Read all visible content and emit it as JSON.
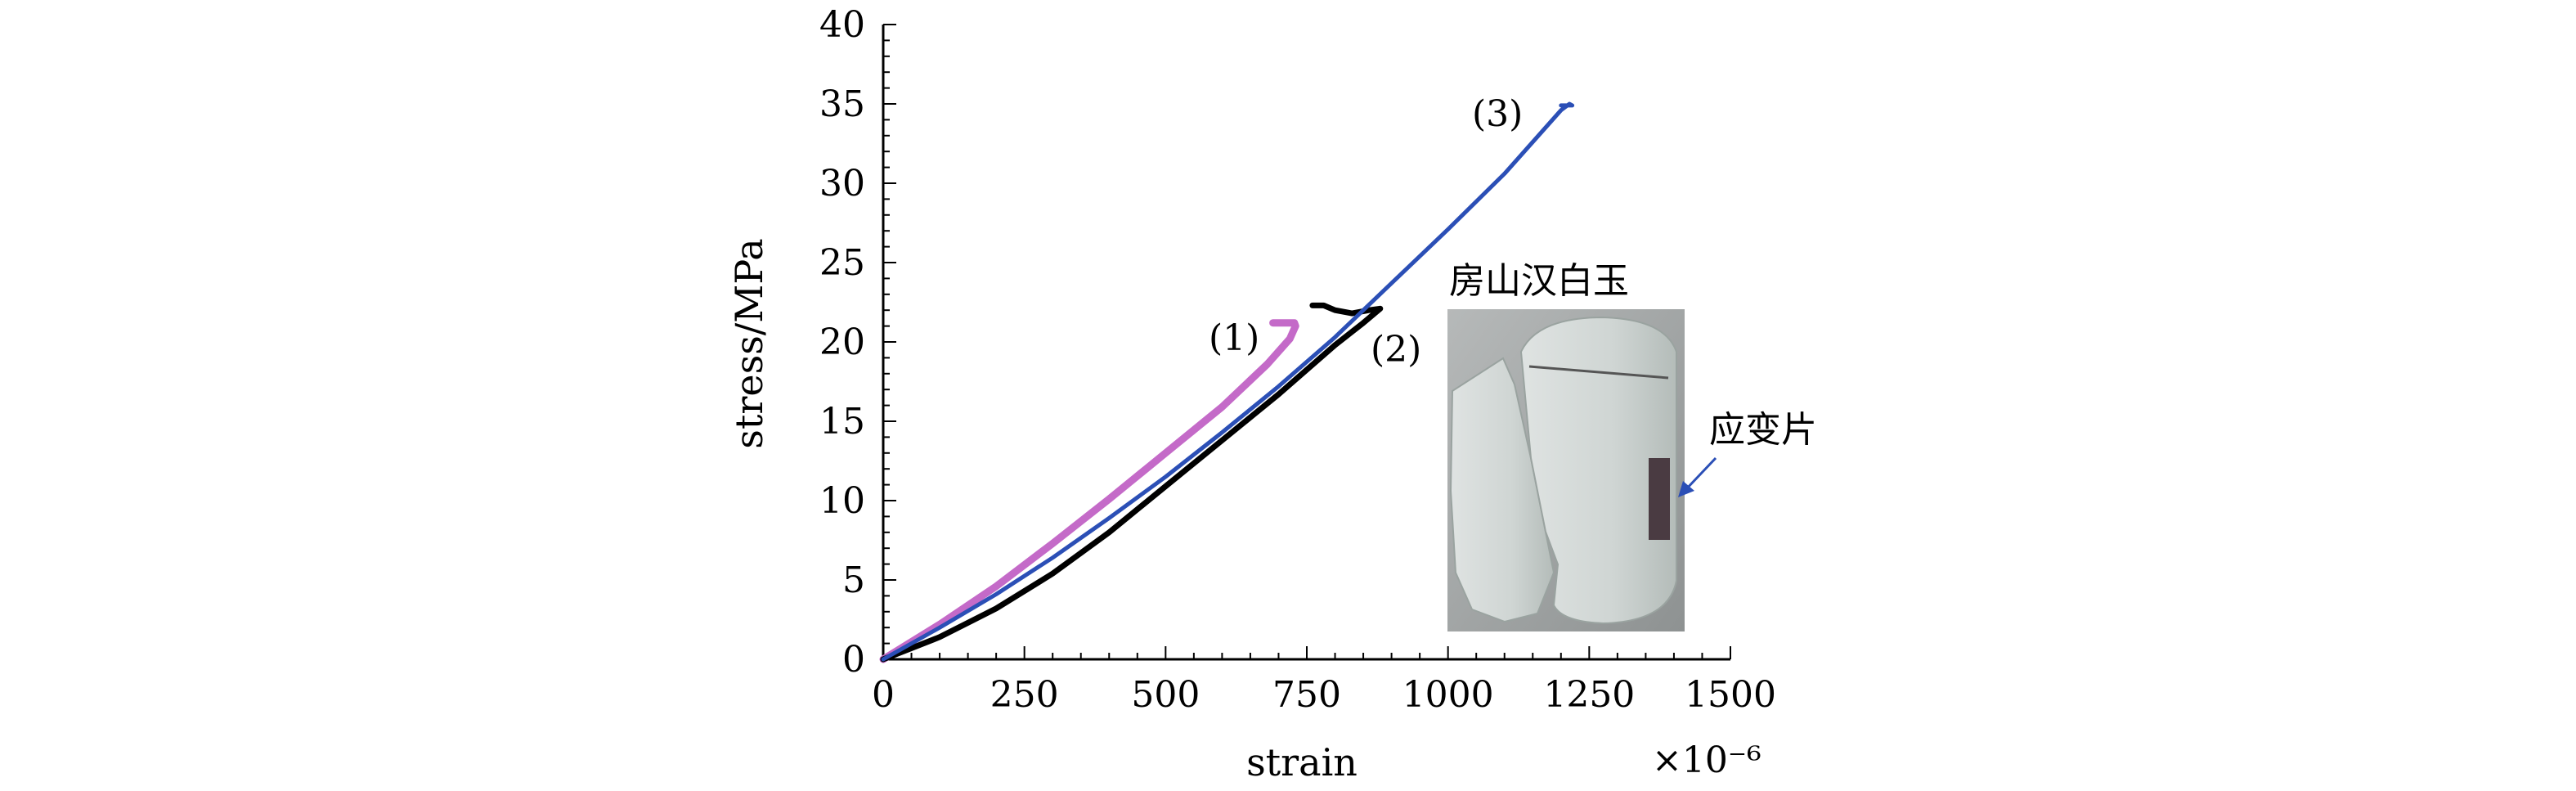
{
  "chart_data": {
    "type": "line",
    "xlabel": "strain",
    "ylabel": "stress/MPa",
    "x_multiplier": "×10⁻⁶",
    "xlim": [
      0,
      1500
    ],
    "ylim": [
      0,
      40
    ],
    "x_ticks": [
      0,
      250,
      500,
      750,
      1000,
      1250,
      1500
    ],
    "y_ticks": [
      0,
      5,
      10,
      15,
      20,
      25,
      30,
      35,
      40
    ],
    "grid": false,
    "series": [
      {
        "name": "(1)",
        "color": "#c46ac8",
        "x": [
          0,
          100,
          200,
          300,
          400,
          500,
          600,
          680,
          720,
          730,
          728,
          720,
          690
        ],
        "y": [
          0,
          2.2,
          4.6,
          7.3,
          10.1,
          13.0,
          15.9,
          18.6,
          20.2,
          21.0,
          21.2,
          21.2,
          21.2
        ]
      },
      {
        "name": "(2)",
        "color": "#000000",
        "x": [
          0,
          100,
          200,
          300,
          400,
          500,
          600,
          700,
          800,
          850,
          880,
          860,
          830,
          800,
          780,
          760
        ],
        "y": [
          0,
          1.4,
          3.2,
          5.4,
          8.0,
          10.9,
          13.8,
          16.7,
          19.8,
          21.2,
          22.1,
          22.0,
          21.8,
          22.0,
          22.3,
          22.3
        ]
      },
      {
        "name": "(3)",
        "color": "#2b4fb6",
        "x": [
          0,
          100,
          200,
          300,
          400,
          500,
          600,
          700,
          800,
          900,
          1000,
          1100,
          1200,
          1215,
          1220,
          1200
        ],
        "y": [
          0,
          2.0,
          4.1,
          6.4,
          8.9,
          11.5,
          14.3,
          17.2,
          20.3,
          23.7,
          27.1,
          30.6,
          34.6,
          35.0,
          34.9,
          34.9
        ]
      }
    ],
    "inset": {
      "title": "房山汉白玉",
      "strain_gauge_label": "应变片"
    }
  }
}
